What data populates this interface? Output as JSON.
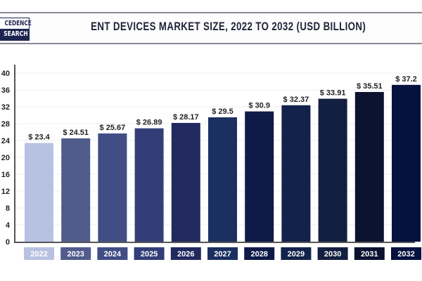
{
  "logo": {
    "top_text": "CEDENCE",
    "bottom_text": "SEARCH"
  },
  "chart_data": {
    "type": "bar",
    "title": "ENT DEVICES MARKET SIZE, 2022 TO 2032 (USD BILLION)",
    "xlabel": "",
    "ylabel": "",
    "categories": [
      "2022",
      "2023",
      "2024",
      "2025",
      "2026",
      "2027",
      "2028",
      "2029",
      "2030",
      "2031",
      "2032"
    ],
    "values": [
      23.4,
      24.51,
      25.67,
      26.89,
      28.17,
      29.5,
      30.9,
      32.37,
      33.91,
      35.51,
      37.2
    ],
    "data_labels": [
      "$ 23.4",
      "$ 24.51",
      "$ 25.67",
      "$ 26.89",
      "$ 28.17",
      "$ 29.5",
      "$ 30.9",
      "$ 32.37",
      "$ 33.91",
      "$ 35.51",
      "$ 37.2"
    ],
    "ylim": [
      0,
      40
    ],
    "yticks": [
      0,
      4,
      8,
      12,
      16,
      20,
      24,
      28,
      32,
      36,
      40
    ],
    "grid": true,
    "legend": "none",
    "colors": [
      "#b7c1e2",
      "#515b8c",
      "#414d85",
      "#333e78",
      "#22295e",
      "#1b3060",
      "#0e1a48",
      "#12224a",
      "#131f40",
      "#0c1330",
      "#05113f"
    ]
  }
}
